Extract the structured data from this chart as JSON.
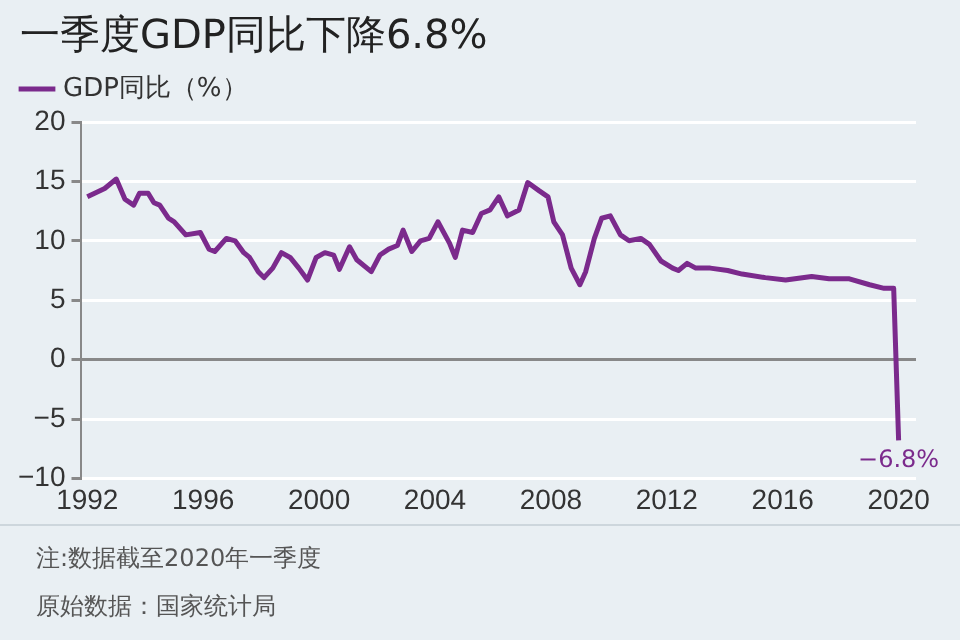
{
  "chart_data": {
    "type": "line",
    "title": "一季度GDP同比下降6.8%",
    "x": [
      1992,
      1992.6,
      1993,
      1993.3,
      1993.6,
      1993.8,
      1994.1,
      1994.3,
      1994.5,
      1994.8,
      1995,
      1995.4,
      1995.9,
      1996.2,
      1996.4,
      1996.8,
      1997.1,
      1997.4,
      1997.6,
      1997.9,
      1998.1,
      1998.4,
      1998.7,
      1999,
      1999.3,
      1999.6,
      1999.9,
      2000.2,
      2000.5,
      2000.7,
      2001.05,
      2001.3,
      2001.8,
      2002.1,
      2002.4,
      2002.7,
      2002.9,
      2003.2,
      2003.5,
      2003.8,
      2004.1,
      2004.5,
      2004.7,
      2004.95,
      2005.3,
      2005.6,
      2005.9,
      2006.2,
      2006.5,
      2006.9,
      2007.2,
      2007.6,
      2007.9,
      2008.1,
      2008.4,
      2008.7,
      2009,
      2009.2,
      2009.5,
      2009.75,
      2010.05,
      2010.4,
      2010.7,
      2011.1,
      2011.4,
      2011.8,
      2012.2,
      2012.4,
      2012.7,
      2013,
      2013.5,
      2014.1,
      2014.6,
      2015.4,
      2016.1,
      2017,
      2017.6,
      2018.3,
      2019,
      2019.5,
      2019.83,
      2020
    ],
    "series": [
      {
        "name": "GDP同比（%）",
        "color": "#7b2a8c",
        "values": [
          13.7,
          14.4,
          15.2,
          13.5,
          13,
          14,
          14,
          13.2,
          13,
          11.9,
          11.6,
          10.5,
          10.7,
          9.3,
          9.1,
          10.2,
          10,
          9,
          8.6,
          7.4,
          6.9,
          7.7,
          9,
          8.6,
          7.7,
          6.7,
          8.6,
          9,
          8.8,
          7.6,
          9.5,
          8.4,
          7.4,
          8.8,
          9.3,
          9.6,
          10.9,
          9.1,
          10,
          10.2,
          11.6,
          9.8,
          8.6,
          10.9,
          10.7,
          12.3,
          12.6,
          13.7,
          12.1,
          12.6,
          14.9,
          14.2,
          13.7,
          11.6,
          10.5,
          7.7,
          6.3,
          7.4,
          10.2,
          11.9,
          12.1,
          10.5,
          10,
          10.2,
          9.7,
          8.3,
          7.7,
          7.5,
          8.1,
          7.7,
          7.7,
          7.5,
          7.2,
          6.9,
          6.7,
          7,
          6.8,
          6.8,
          6.3,
          6,
          6,
          -6.8
        ]
      }
    ],
    "xlim": [
      1991.8,
      2020.6
    ],
    "xticks": [
      1992,
      1996,
      2000,
      2004,
      2008,
      2012,
      2016,
      2020
    ],
    "ylim": [
      -10,
      20
    ],
    "yticks": [
      -10,
      -5,
      0,
      5,
      10,
      15,
      20
    ],
    "grid": "y",
    "legend": "top left",
    "marker": "none",
    "line_style": "solid",
    "annotations": [
      {
        "text": "−6.8%",
        "x": 2020,
        "y": -6.8
      },
      "注:数据截至2020年一季度",
      "原始数据：国家统计局"
    ]
  }
}
